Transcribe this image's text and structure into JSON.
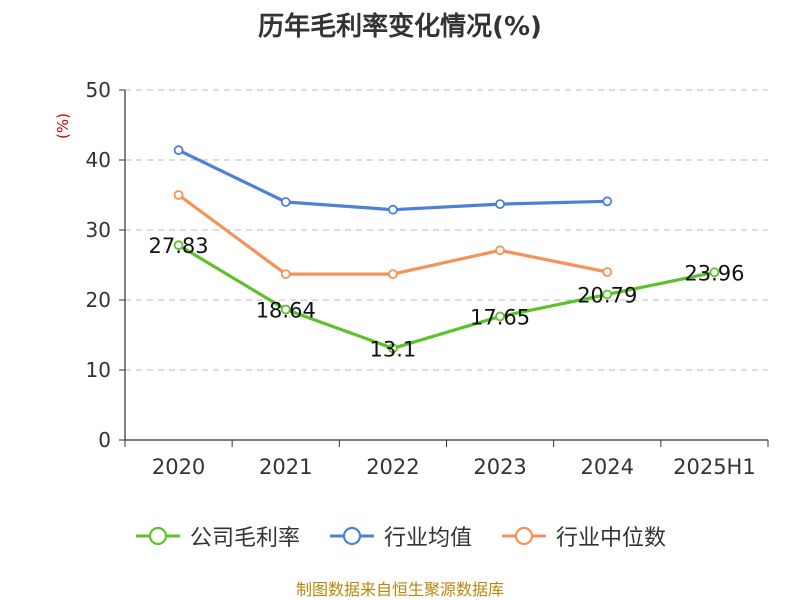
{
  "chart_data": {
    "type": "line",
    "title": "历年毛利率变化情况(%)",
    "ylabel": "(%)",
    "categories": [
      "2020",
      "2021",
      "2022",
      "2023",
      "2024",
      "2025H1"
    ],
    "ylim": [
      0,
      50
    ],
    "yticks": [
      0,
      10,
      20,
      30,
      40,
      50
    ],
    "grid": true,
    "legend_position": "bottom",
    "series": [
      {
        "name": "公司毛利率",
        "color": "#5cc12a",
        "values": [
          27.83,
          18.64,
          13.1,
          17.65,
          20.79,
          23.96
        ],
        "data_labels": [
          "27.83",
          "18.64",
          "13.1",
          "17.65",
          "20.79",
          "23.96"
        ]
      },
      {
        "name": "行业均值",
        "color": "#4e7fd9",
        "values": [
          41.4,
          34.0,
          32.9,
          33.7,
          34.1,
          null
        ]
      },
      {
        "name": "行业中位数",
        "color": "#f59159",
        "values": [
          35.0,
          23.7,
          23.7,
          27.1,
          24.0,
          null
        ]
      }
    ]
  },
  "source_text": "制图数据来自恒生聚源数据库"
}
